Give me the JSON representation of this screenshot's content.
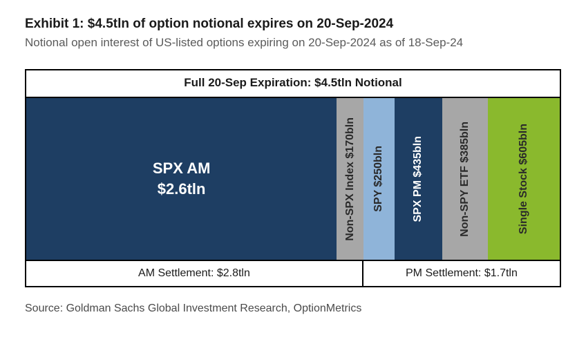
{
  "title": "Exhibit 1: $4.5tln of option notional expires on 20-Sep-2024",
  "subtitle": "Notional open interest of US-listed options expiring on 20-Sep-2024 as of 18-Sep-24",
  "full_label": "Full 20-Sep Expiration: $4.5tln Notional",
  "chart": {
    "type": "stacked-bar-horizontal",
    "total_value_tln": 4.5,
    "background_color": "#ffffff",
    "border_color": "#000000",
    "segments": [
      {
        "key": "spx_am",
        "label_line1": "SPX AM",
        "label_line2": "$2.6tln",
        "value_bln": 2600,
        "color": "#1e3e63",
        "text_color": "#ffffff",
        "orientation": "horizontal",
        "settlement": "AM"
      },
      {
        "key": "non_spx_index",
        "label": "Non-SPX Index $170bln",
        "value_bln": 170,
        "color": "#a7a7a7",
        "text_color": "#2a2a2a",
        "orientation": "vertical",
        "settlement": "AM"
      },
      {
        "key": "spy",
        "label": "SPY $250bln",
        "value_bln": 250,
        "color": "#8fb4d9",
        "text_color": "#2a2a2a",
        "orientation": "vertical",
        "settlement": "PM"
      },
      {
        "key": "spx_pm",
        "label": "SPX PM $435bln",
        "value_bln": 435,
        "color": "#1e3e63",
        "text_color": "#ffffff",
        "orientation": "vertical",
        "settlement": "PM"
      },
      {
        "key": "non_spy_etf",
        "label": "Non-SPY ETF $385bln",
        "value_bln": 385,
        "color": "#a7a7a7",
        "text_color": "#2a2a2a",
        "orientation": "vertical",
        "settlement": "PM"
      },
      {
        "key": "single_stock",
        "label": "Single Stock $605bln",
        "value_bln": 605,
        "color": "#8ab92d",
        "text_color": "#2a2a2a",
        "orientation": "vertical",
        "settlement": "PM"
      }
    ],
    "widths_pct": [
      58.2,
      5.0,
      5.8,
      9.0,
      8.5,
      13.5
    ],
    "settlement_rows": {
      "am": {
        "label": "AM Settlement: $2.8tln",
        "width_pct": 63.2
      },
      "pm": {
        "label": "PM Settlement: $1.7tln",
        "width_pct": 36.8
      }
    }
  },
  "source": "Source: Goldman Sachs Global Investment Research, OptionMetrics"
}
